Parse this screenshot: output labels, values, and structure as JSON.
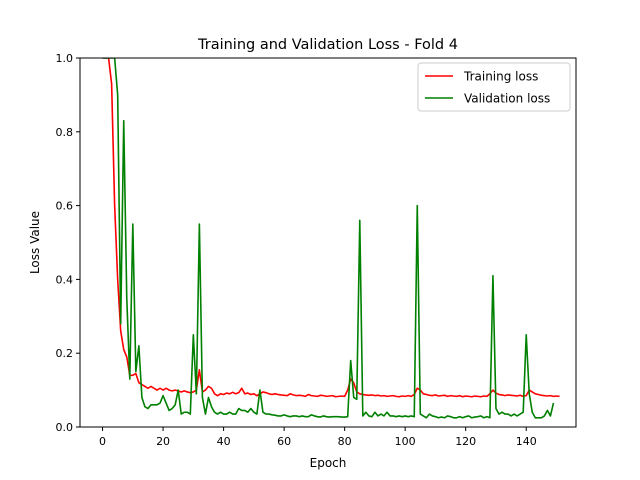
{
  "chart_data": {
    "type": "line",
    "title": "Training and Validation Loss - Fold 4",
    "xlabel": "Epoch",
    "ylabel": "Loss Value",
    "xlim": [
      -7.45,
      156.45
    ],
    "ylim": [
      0,
      1.0
    ],
    "xticks": [
      0,
      20,
      40,
      60,
      80,
      100,
      120,
      140
    ],
    "yticks": [
      0.0,
      0.2,
      0.4,
      0.6,
      0.8,
      1.0
    ],
    "xtick_labels": [
      "0",
      "20",
      "40",
      "60",
      "80",
      "100",
      "120",
      "140"
    ],
    "ytick_labels": [
      "0.0",
      "0.2",
      "0.4",
      "0.6",
      "0.8",
      "1.0"
    ],
    "grid": false,
    "legend_position": "top-right",
    "series": [
      {
        "name": "Training loss",
        "color": "#ff0000",
        "values": [
          1.0,
          1.0,
          1.0,
          0.93,
          0.6,
          0.4,
          0.26,
          0.21,
          0.19,
          0.14,
          0.14,
          0.145,
          0.12,
          0.115,
          0.11,
          0.105,
          0.11,
          0.105,
          0.1,
          0.105,
          0.1,
          0.105,
          0.1,
          0.098,
          0.1,
          0.098,
          0.095,
          0.098,
          0.095,
          0.093,
          0.095,
          0.1,
          0.155,
          0.095,
          0.1,
          0.11,
          0.105,
          0.09,
          0.085,
          0.09,
          0.088,
          0.092,
          0.09,
          0.094,
          0.09,
          0.093,
          0.105,
          0.09,
          0.092,
          0.088,
          0.09,
          0.085,
          0.09,
          0.095,
          0.093,
          0.09,
          0.088,
          0.09,
          0.088,
          0.087,
          0.086,
          0.085,
          0.09,
          0.087,
          0.085,
          0.086,
          0.085,
          0.083,
          0.088,
          0.085,
          0.084,
          0.083,
          0.086,
          0.085,
          0.083,
          0.084,
          0.085,
          0.082,
          0.083,
          0.084,
          0.083,
          0.1,
          0.13,
          0.12,
          0.095,
          0.09,
          0.088,
          0.087,
          0.086,
          0.087,
          0.085,
          0.086,
          0.084,
          0.085,
          0.083,
          0.084,
          0.085,
          0.083,
          0.082,
          0.084,
          0.083,
          0.085,
          0.083,
          0.088,
          0.105,
          0.1,
          0.09,
          0.088,
          0.086,
          0.085,
          0.087,
          0.084,
          0.085,
          0.086,
          0.083,
          0.085,
          0.084,
          0.083,
          0.085,
          0.082,
          0.084,
          0.083,
          0.082,
          0.084,
          0.083,
          0.082,
          0.084,
          0.083,
          0.09,
          0.1,
          0.092,
          0.088,
          0.087,
          0.085,
          0.087,
          0.086,
          0.085,
          0.084,
          0.086,
          0.083,
          0.085,
          0.1,
          0.095,
          0.09,
          0.088,
          0.086,
          0.085,
          0.084,
          0.085,
          0.083,
          0.084,
          0.083
        ]
      },
      {
        "name": "Validation loss",
        "color": "#008000",
        "values": [
          1.0,
          1.0,
          1.0,
          1.0,
          1.0,
          0.9,
          0.28,
          0.83,
          0.35,
          0.13,
          0.55,
          0.15,
          0.22,
          0.08,
          0.055,
          0.05,
          0.06,
          0.06,
          0.06,
          0.065,
          0.085,
          0.065,
          0.045,
          0.05,
          0.06,
          0.1,
          0.035,
          0.04,
          0.04,
          0.035,
          0.25,
          0.09,
          0.55,
          0.08,
          0.035,
          0.08,
          0.055,
          0.04,
          0.035,
          0.04,
          0.035,
          0.035,
          0.04,
          0.035,
          0.035,
          0.05,
          0.045,
          0.045,
          0.04,
          0.05,
          0.04,
          0.035,
          0.1,
          0.04,
          0.035,
          0.035,
          0.033,
          0.032,
          0.03,
          0.03,
          0.033,
          0.03,
          0.028,
          0.03,
          0.03,
          0.028,
          0.03,
          0.028,
          0.028,
          0.033,
          0.03,
          0.028,
          0.027,
          0.03,
          0.028,
          0.027,
          0.028,
          0.028,
          0.028,
          0.027,
          0.027,
          0.028,
          0.18,
          0.08,
          0.075,
          0.56,
          0.03,
          0.04,
          0.03,
          0.028,
          0.04,
          0.03,
          0.035,
          0.03,
          0.04,
          0.03,
          0.03,
          0.028,
          0.03,
          0.028,
          0.03,
          0.028,
          0.03,
          0.028,
          0.6,
          0.035,
          0.03,
          0.025,
          0.035,
          0.03,
          0.028,
          0.025,
          0.027,
          0.025,
          0.03,
          0.028,
          0.025,
          0.025,
          0.028,
          0.025,
          0.028,
          0.03,
          0.025,
          0.027,
          0.028,
          0.03,
          0.025,
          0.028,
          0.025,
          0.41,
          0.05,
          0.035,
          0.04,
          0.035,
          0.035,
          0.03,
          0.035,
          0.03,
          0.035,
          0.04,
          0.25,
          0.09,
          0.04,
          0.025,
          0.025,
          0.025,
          0.03,
          0.045,
          0.03,
          0.065
        ]
      }
    ]
  }
}
